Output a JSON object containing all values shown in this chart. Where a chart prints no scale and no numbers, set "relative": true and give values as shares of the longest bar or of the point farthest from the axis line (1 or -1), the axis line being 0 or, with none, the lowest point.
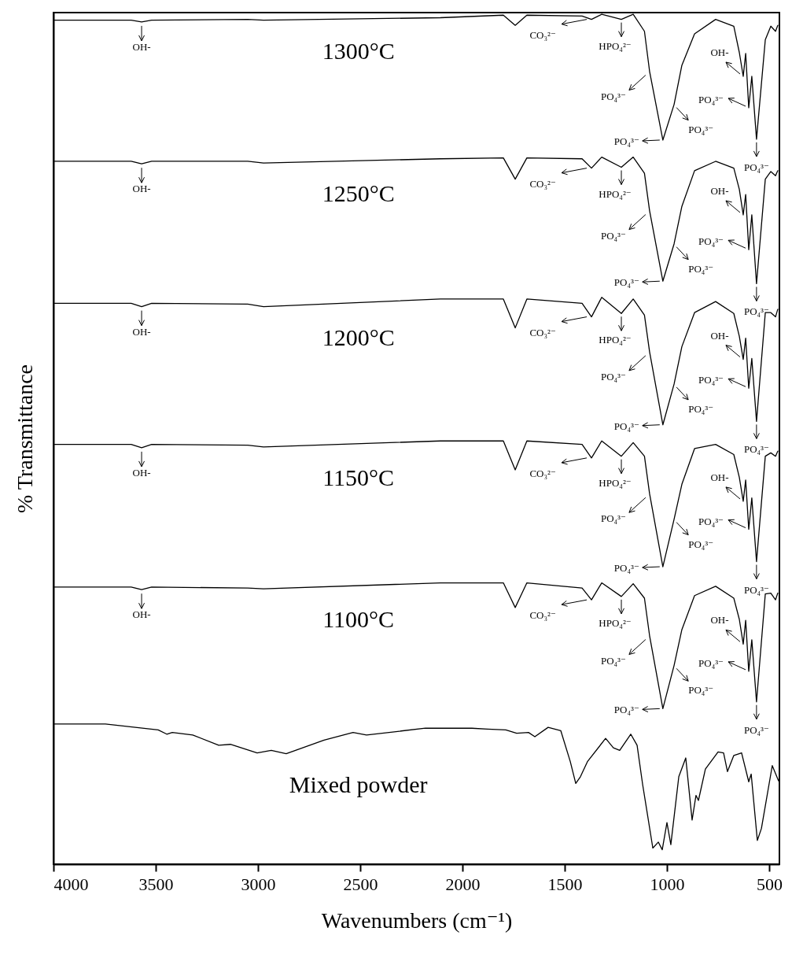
{
  "chart_data": {
    "type": "line",
    "relative": true,
    "xlabel": "Wavenumbers (cm⁻¹)",
    "ylabel": "% Transmittance",
    "xlim": [
      4000,
      450
    ],
    "xticks": [
      4000,
      3500,
      3000,
      2500,
      2000,
      1500,
      1000,
      500
    ],
    "x": [
      4000,
      3620,
      3569,
      3520,
      3050,
      2973,
      2108,
      1800,
      1742,
      1685,
      1415,
      1369,
      1319,
      1223,
      1165,
      1110,
      1085,
      1020,
      965,
      927,
      865,
      762,
      673,
      646,
      627,
      615,
      600,
      585,
      562,
      519,
      492,
      469,
      458
    ],
    "series": [
      {
        "name": "1300°C",
        "color": "#000000",
        "values": [
          0.993,
          0.993,
          0.991,
          0.993,
          0.994,
          0.993,
          0.996,
          0.999,
          0.987,
          0.999,
          0.998,
          0.994,
          1.0,
          0.994,
          1.0,
          0.98,
          0.933,
          0.852,
          0.894,
          0.94,
          0.977,
          0.994,
          0.986,
          0.955,
          0.927,
          0.954,
          0.89,
          0.927,
          0.853,
          0.97,
          0.986,
          0.98,
          0.987
        ]
      },
      {
        "name": "1250°C",
        "color": "#000000",
        "values": [
          0.827,
          0.827,
          0.824,
          0.827,
          0.827,
          0.825,
          0.83,
          0.831,
          0.806,
          0.831,
          0.83,
          0.819,
          0.832,
          0.82,
          0.832,
          0.813,
          0.769,
          0.686,
          0.73,
          0.774,
          0.816,
          0.827,
          0.819,
          0.794,
          0.764,
          0.788,
          0.723,
          0.764,
          0.683,
          0.806,
          0.815,
          0.81,
          0.816
        ]
      },
      {
        "name": "1200°C",
        "color": "#000000",
        "values": [
          0.66,
          0.66,
          0.656,
          0.66,
          0.659,
          0.656,
          0.665,
          0.665,
          0.631,
          0.665,
          0.66,
          0.644,
          0.667,
          0.648,
          0.665,
          0.646,
          0.603,
          0.517,
          0.565,
          0.609,
          0.649,
          0.662,
          0.648,
          0.621,
          0.594,
          0.619,
          0.56,
          0.595,
          0.521,
          0.649,
          0.649,
          0.644,
          0.653
        ]
      },
      {
        "name": "1150°C",
        "color": "#000000",
        "values": [
          0.494,
          0.494,
          0.49,
          0.494,
          0.493,
          0.491,
          0.498,
          0.498,
          0.464,
          0.498,
          0.494,
          0.478,
          0.498,
          0.48,
          0.496,
          0.48,
          0.436,
          0.35,
          0.406,
          0.447,
          0.489,
          0.494,
          0.482,
          0.455,
          0.427,
          0.452,
          0.394,
          0.431,
          0.356,
          0.48,
          0.484,
          0.48,
          0.486
        ]
      },
      {
        "name": "1100°C",
        "color": "#000000",
        "values": [
          0.326,
          0.326,
          0.323,
          0.326,
          0.325,
          0.324,
          0.331,
          0.331,
          0.302,
          0.331,
          0.325,
          0.311,
          0.331,
          0.315,
          0.33,
          0.313,
          0.269,
          0.183,
          0.234,
          0.276,
          0.316,
          0.327,
          0.313,
          0.288,
          0.259,
          0.287,
          0.227,
          0.264,
          0.191,
          0.318,
          0.319,
          0.311,
          0.319
        ]
      },
      {
        "name": "Mixed powder",
        "color": "#000000",
        "x": [
          4000,
          3746,
          3488,
          3446,
          3419,
          3319,
          3192,
          3135,
          3004,
          2935,
          2862,
          2677,
          2535,
          2469,
          2181,
          1954,
          1877,
          1788,
          1735,
          1677,
          1646,
          1581,
          1519,
          1473,
          1446,
          1423,
          1388,
          1300,
          1262,
          1231,
          1177,
          1146,
          1119,
          1069,
          1042,
          1023,
          1000,
          981,
          942,
          908,
          877,
          858,
          846,
          812,
          750,
          723,
          704,
          673,
          635,
          600,
          588,
          558,
          538,
          485,
          454
        ],
        "values": [
          0.165,
          0.165,
          0.158,
          0.153,
          0.155,
          0.152,
          0.14,
          0.141,
          0.131,
          0.134,
          0.13,
          0.146,
          0.155,
          0.152,
          0.16,
          0.16,
          0.159,
          0.158,
          0.154,
          0.155,
          0.15,
          0.161,
          0.157,
          0.121,
          0.095,
          0.103,
          0.121,
          0.148,
          0.137,
          0.134,
          0.153,
          0.14,
          0.094,
          0.019,
          0.026,
          0.017,
          0.049,
          0.023,
          0.103,
          0.125,
          0.052,
          0.081,
          0.075,
          0.112,
          0.132,
          0.131,
          0.109,
          0.128,
          0.131,
          0.097,
          0.106,
          0.028,
          0.042,
          0.116,
          0.098
        ]
      }
    ],
    "annotations": [
      {
        "text": "OH-",
        "x": 3569,
        "y": 0.991
      },
      {
        "text": "CO₃²⁻",
        "x": 1369,
        "y": 0.994
      },
      {
        "text": "HPO₄²⁻",
        "x": 1223,
        "y": 0.994
      },
      {
        "text": "PO₄³⁻",
        "x": 1085,
        "y": 0.933
      },
      {
        "text": "PO₄³⁻",
        "x": 1020,
        "y": 0.852
      },
      {
        "text": "PO₄³⁻",
        "x": 965,
        "y": 0.894
      },
      {
        "text": "OH-",
        "x": 627,
        "y": 0.927
      },
      {
        "text": "PO₄³⁻",
        "x": 600,
        "y": 0.89
      },
      {
        "text": "PO₄³⁻",
        "x": 562,
        "y": 0.853
      },
      {
        "text": "OH-",
        "x": 3569,
        "y": 0.824
      },
      {
        "text": "CO₃²⁻",
        "x": 1369,
        "y": 0.819
      },
      {
        "text": "HPO₄²⁻",
        "x": 1223,
        "y": 0.82
      },
      {
        "text": "PO₄³⁻",
        "x": 1085,
        "y": 0.769
      },
      {
        "text": "PO₄³⁻",
        "x": 1020,
        "y": 0.686
      },
      {
        "text": "PO₄³⁻",
        "x": 965,
        "y": 0.73
      },
      {
        "text": "OH-",
        "x": 627,
        "y": 0.764
      },
      {
        "text": "PO₄³⁻",
        "x": 600,
        "y": 0.723
      },
      {
        "text": "PO₄³⁻",
        "x": 562,
        "y": 0.683
      },
      {
        "text": "OH-",
        "x": 3569,
        "y": 0.656
      },
      {
        "text": "CO₃²⁻",
        "x": 1369,
        "y": 0.644
      },
      {
        "text": "HPO₄²⁻",
        "x": 1223,
        "y": 0.648
      },
      {
        "text": "PO₄³⁻",
        "x": 1085,
        "y": 0.603
      },
      {
        "text": "PO₄³⁻",
        "x": 1020,
        "y": 0.517
      },
      {
        "text": "PO₄³⁻",
        "x": 965,
        "y": 0.565
      },
      {
        "text": "OH-",
        "x": 627,
        "y": 0.594
      },
      {
        "text": "PO₄³⁻",
        "x": 600,
        "y": 0.56
      },
      {
        "text": "PO₄³⁻",
        "x": 562,
        "y": 0.521
      },
      {
        "text": "OH-",
        "x": 3569,
        "y": 0.49
      },
      {
        "text": "CO₃²⁻",
        "x": 1369,
        "y": 0.478
      },
      {
        "text": "HPO₄²⁻",
        "x": 1223,
        "y": 0.48
      },
      {
        "text": "PO₄³⁻",
        "x": 1085,
        "y": 0.436
      },
      {
        "text": "PO₄³⁻",
        "x": 1020,
        "y": 0.35
      },
      {
        "text": "PO₄³⁻",
        "x": 965,
        "y": 0.406
      },
      {
        "text": "OH-",
        "x": 627,
        "y": 0.427
      },
      {
        "text": "PO₄³⁻",
        "x": 600,
        "y": 0.394
      },
      {
        "text": "PO₄³⁻",
        "x": 562,
        "y": 0.356
      },
      {
        "text": "OH-",
        "x": 3569,
        "y": 0.323
      },
      {
        "text": "CO₃²⁻",
        "x": 1369,
        "y": 0.311
      },
      {
        "text": "HPO₄²⁻",
        "x": 1223,
        "y": 0.315
      },
      {
        "text": "PO₄³⁻",
        "x": 1085,
        "y": 0.269
      },
      {
        "text": "PO₄³⁻",
        "x": 1020,
        "y": 0.183
      },
      {
        "text": "PO₄³⁻",
        "x": 965,
        "y": 0.234
      },
      {
        "text": "OH-",
        "x": 627,
        "y": 0.259
      },
      {
        "text": "PO₄³⁻",
        "x": 600,
        "y": 0.227
      },
      {
        "text": "PO₄³⁻",
        "x": 562,
        "y": 0.191
      }
    ]
  }
}
